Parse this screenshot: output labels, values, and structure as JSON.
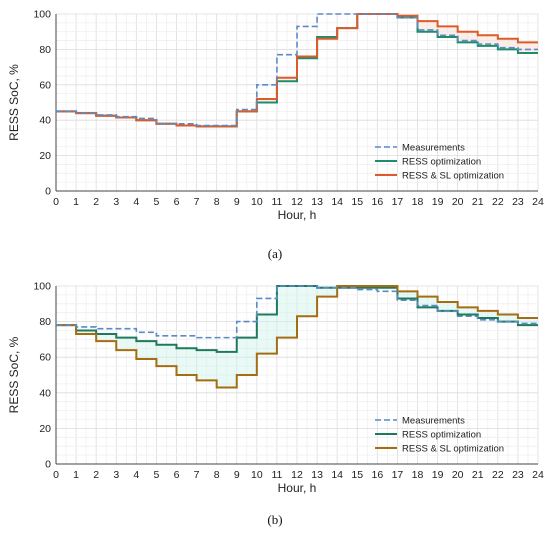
{
  "chart_data": [
    {
      "type": "line",
      "step": true,
      "caption": "(a)",
      "xlabel": "Hour, h",
      "ylabel": "RESS SoC, %",
      "xlim": [
        0,
        24
      ],
      "ylim": [
        0,
        100
      ],
      "x_ticks": [
        "0",
        "1",
        "2",
        "3",
        "4",
        "5",
        "6",
        "7",
        "8",
        "9",
        "10",
        "11",
        "12",
        "13",
        "14",
        "15",
        "16",
        "17",
        "18",
        "19",
        "20",
        "21",
        "22",
        "23",
        "24"
      ],
      "y_ticks": [
        "0",
        "20",
        "40",
        "60",
        "80",
        "100"
      ],
      "grid": true,
      "legend_position": "bottom-right",
      "hours": [
        0,
        1,
        2,
        3,
        4,
        5,
        6,
        7,
        8,
        9,
        10,
        11,
        12,
        13,
        14,
        15,
        16,
        17,
        18,
        19,
        20,
        21,
        22,
        23
      ],
      "series": [
        {
          "name": "Measurements",
          "color": "#5b8ac6",
          "dash": "dashed",
          "values": [
            45,
            44,
            43,
            42,
            41,
            38,
            38,
            37,
            37,
            46,
            60,
            77,
            93,
            100,
            100,
            100,
            100,
            98,
            91,
            88,
            85,
            83,
            81,
            80
          ]
        },
        {
          "name": "RESS optimization",
          "color": "#1f8c6a",
          "dash": "solid",
          "values": [
            45,
            44,
            42.5,
            41.5,
            40,
            38,
            37,
            36.5,
            36.5,
            45,
            50,
            62,
            75,
            87,
            92,
            100,
            100,
            98,
            90,
            87,
            84,
            82,
            80,
            78
          ]
        },
        {
          "name": "RESS & SL optimization",
          "color": "#dd5b2a",
          "dash": "solid",
          "values": [
            45,
            44,
            42.5,
            41.5,
            40,
            38,
            37,
            36.5,
            36.5,
            45,
            52,
            64,
            76,
            86,
            92,
            100,
            100,
            99,
            96,
            93,
            90,
            88,
            86,
            84
          ]
        }
      ]
    },
    {
      "type": "line",
      "step": true,
      "caption": "(b)",
      "xlabel": "Hour, h",
      "ylabel": "RESS SoC, %",
      "xlim": [
        0,
        24
      ],
      "ylim": [
        0,
        100
      ],
      "x_ticks": [
        "0",
        "1",
        "2",
        "3",
        "4",
        "5",
        "6",
        "7",
        "8",
        "9",
        "10",
        "11",
        "12",
        "13",
        "14",
        "15",
        "16",
        "17",
        "18",
        "19",
        "20",
        "21",
        "22",
        "23",
        "24"
      ],
      "y_ticks": [
        "0",
        "20",
        "40",
        "60",
        "80",
        "100"
      ],
      "grid": true,
      "legend_position": "bottom-right",
      "hours": [
        0,
        1,
        2,
        3,
        4,
        5,
        6,
        7,
        8,
        9,
        10,
        11,
        12,
        13,
        14,
        15,
        16,
        17,
        18,
        19,
        20,
        21,
        22,
        23
      ],
      "series": [
        {
          "name": "Measurements",
          "color": "#5b8ac6",
          "dash": "dashed",
          "values": [
            78,
            77,
            76,
            76,
            74,
            72,
            72,
            71,
            71,
            80,
            93,
            100,
            100,
            99,
            99,
            98,
            97,
            92,
            89,
            86,
            83,
            81,
            80,
            79
          ]
        },
        {
          "name": "RESS optimization",
          "color": "#1f7a5c",
          "dash": "solid",
          "values": [
            78,
            75,
            73,
            71,
            69,
            67,
            65,
            64,
            63,
            71,
            84,
            100,
            100,
            99,
            99,
            99,
            99,
            93,
            88,
            86,
            84,
            82,
            80,
            78
          ]
        },
        {
          "name": "RESS & SL optimization",
          "color": "#a56d12",
          "dash": "solid",
          "values": [
            78,
            73,
            69,
            64,
            59,
            55,
            50,
            47,
            43,
            50,
            62,
            71,
            83,
            94,
            100,
            100,
            100,
            97,
            94,
            91,
            88,
            86,
            84,
            82
          ]
        }
      ]
    }
  ]
}
